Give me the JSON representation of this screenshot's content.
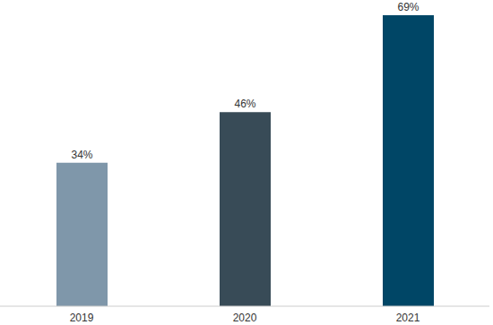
{
  "chart_data": {
    "type": "bar",
    "categories": [
      "2019",
      "2020",
      "2021"
    ],
    "values": [
      34,
      46,
      69
    ],
    "value_labels": [
      "34%",
      "46%",
      "69%"
    ],
    "colors": [
      "#7f97aa",
      "#384b57",
      "#004666"
    ],
    "data_labels": true,
    "tick_labels": "x",
    "grid": false
  }
}
